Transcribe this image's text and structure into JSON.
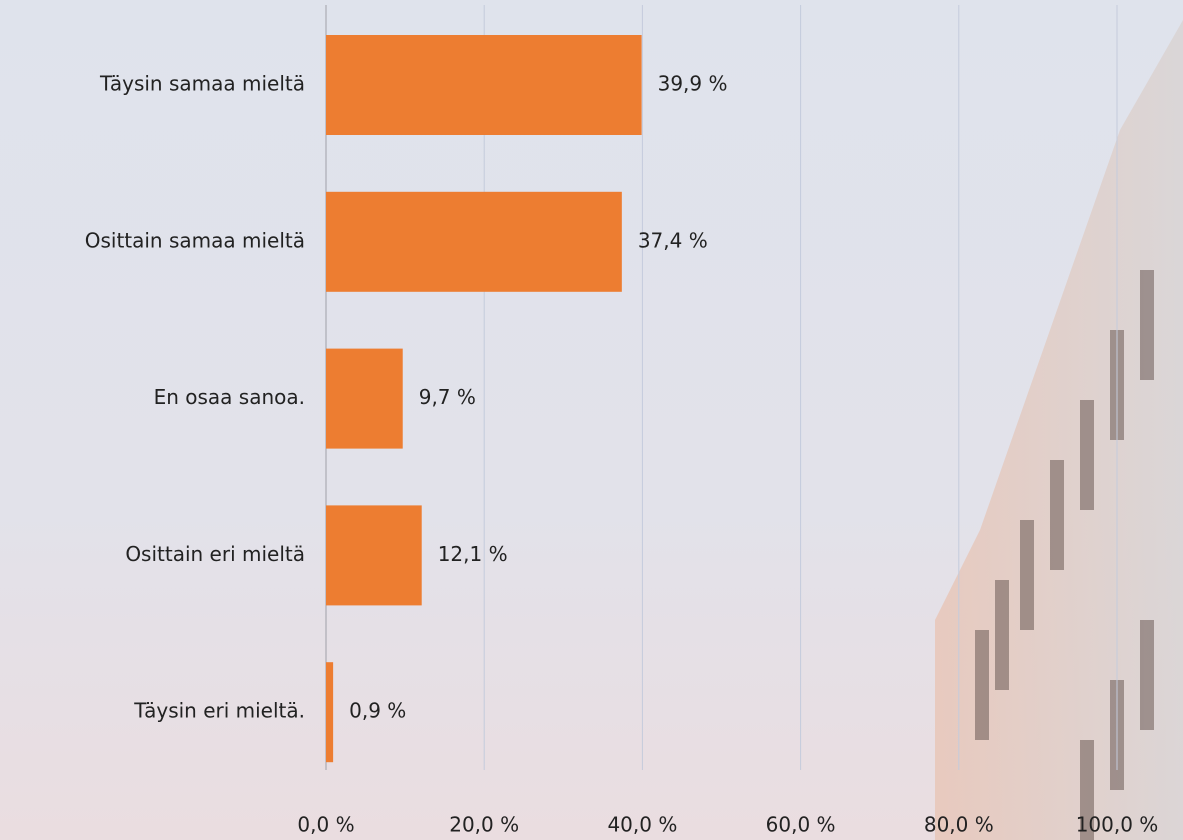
{
  "chart_data": {
    "type": "bar",
    "orientation": "horizontal",
    "categories": [
      "Täysin samaa mieltä",
      "Osittain samaa mieltä",
      "En osaa sanoa.",
      "Osittain eri mieltä",
      "Täysin eri mieltä."
    ],
    "values": [
      39.9,
      37.4,
      9.7,
      12.1,
      0.9
    ],
    "value_labels": [
      "39,9 %",
      "37,4 %",
      "9,7 %",
      "12,1 %",
      "0,9 %"
    ],
    "color": "#ed7d31",
    "xlim": [
      0,
      100
    ],
    "xticks": [
      {
        "value": 0,
        "label": "0,0 %"
      },
      {
        "value": 20,
        "label": "20,0 %"
      },
      {
        "value": 40,
        "label": "40,0 %"
      },
      {
        "value": 60,
        "label": "60,0 %"
      },
      {
        "value": 80,
        "label": "80,0 %"
      },
      {
        "value": 100,
        "label": "100,0 %"
      }
    ],
    "grid": true
  }
}
